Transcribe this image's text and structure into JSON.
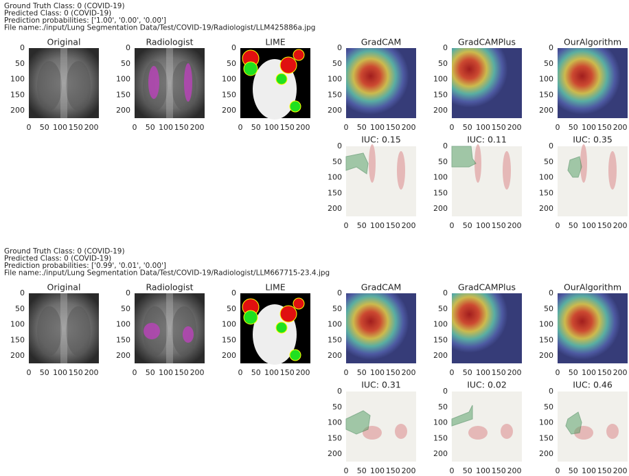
{
  "blocks": [
    {
      "info": [
        "Ground Truth Class: 0 (COVID-19)",
        "Predicted Class: 0 (COVID-19)",
        "Prediction probabilities: ['1.00', '0.00', '0.00']",
        "File name:./input/Lung Segmentation Data/Test/COVID-19/Radiologist/LLM425886a.jpg"
      ],
      "panels": [
        "Original",
        "Radiologist",
        "LIME",
        "GradCAM",
        "GradCAMPlus",
        "OurAlgorithm"
      ],
      "iuc_panels": [
        "IUC: 0.15",
        "IUC: 0.11",
        "IUC: 0.35"
      ]
    },
    {
      "info": [
        "Ground Truth Class: 0 (COVID-19)",
        "Predicted Class: 0 (COVID-19)",
        "Prediction probabilities: ['0.99', '0.01', '0.00']",
        "File name:./input/Lung Segmentation Data/Test/COVID-19/Radiologist/LLM667715-23.4.jpg"
      ],
      "panels": [
        "Original",
        "Radiologist",
        "LIME",
        "GradCAM",
        "GradCAMPlus",
        "OurAlgorithm"
      ],
      "iuc_panels": [
        "IUC: 0.31",
        "IUC: 0.02",
        "IUC: 0.46"
      ]
    }
  ],
  "xticks": [
    0,
    50,
    100,
    150,
    200
  ],
  "yticks": [
    0,
    50,
    100,
    150,
    200
  ]
}
